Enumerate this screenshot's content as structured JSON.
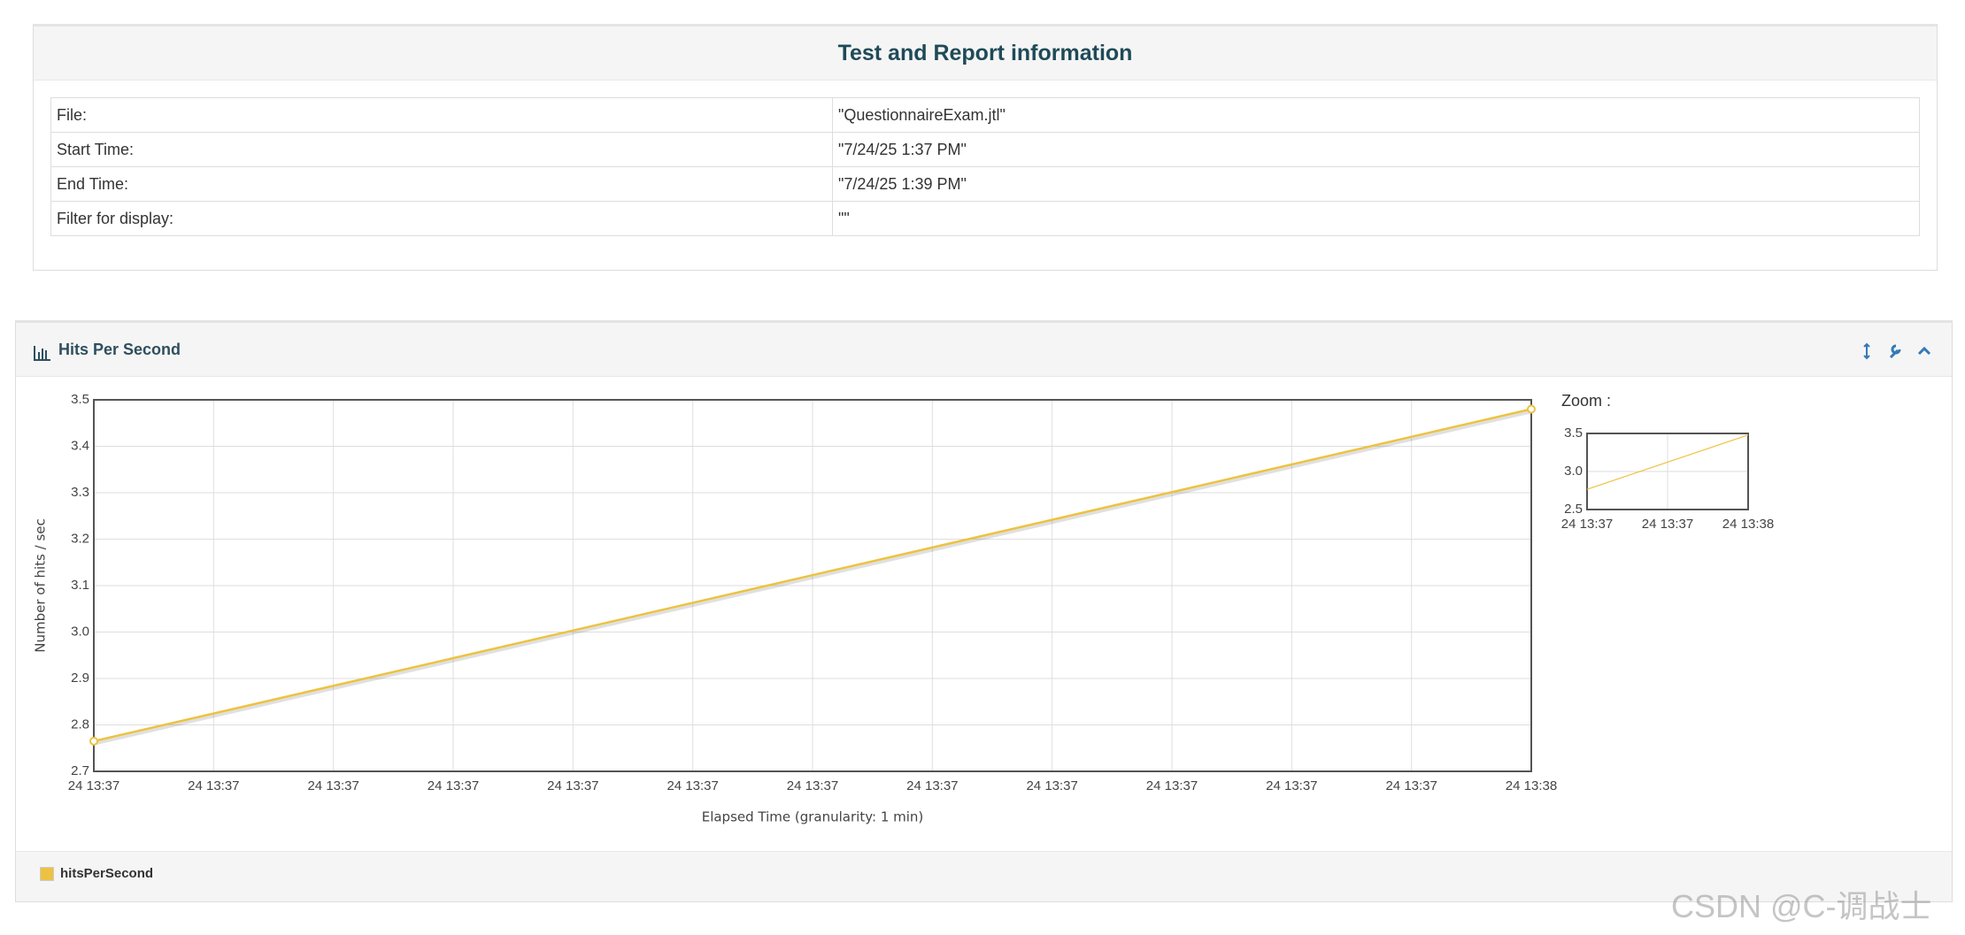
{
  "info": {
    "title": "Test and Report information",
    "rows": [
      [
        "File:",
        "\"QuestionnaireExam.jtl\""
      ],
      [
        "Start Time:",
        "\"7/24/25 1:37 PM\""
      ],
      [
        "End Time:",
        "\"7/24/25 1:39 PM\""
      ],
      [
        "Filter for display:",
        "\"\""
      ]
    ]
  },
  "chart_data": [
    {
      "type": "line",
      "title": "Hits Per Second",
      "x_label": "Elapsed Time (granularity: 1 min)",
      "y_label": "Number of hits / sec",
      "x": [
        0,
        12
      ],
      "series": [
        {
          "name": "hitsPerSecond",
          "color": "#edc240",
          "values": [
            2.765,
            3.48
          ]
        }
      ],
      "xlim": [
        0,
        12
      ],
      "xticks": [
        {
          "value": 0,
          "label": "24 13:37"
        },
        {
          "value": 1,
          "label": "24 13:37"
        },
        {
          "value": 2,
          "label": "24 13:37"
        },
        {
          "value": 3,
          "label": "24 13:37"
        },
        {
          "value": 4,
          "label": "24 13:37"
        },
        {
          "value": 5,
          "label": "24 13:37"
        },
        {
          "value": 6,
          "label": "24 13:37"
        },
        {
          "value": 7,
          "label": "24 13:37"
        },
        {
          "value": 8,
          "label": "24 13:37"
        },
        {
          "value": 9,
          "label": "24 13:37"
        },
        {
          "value": 10,
          "label": "24 13:37"
        },
        {
          "value": 11,
          "label": "24 13:37"
        },
        {
          "value": 12,
          "label": "24 13:38"
        }
      ],
      "ylim": [
        2.7,
        3.5
      ],
      "yticks": [
        2.7,
        2.8,
        2.9,
        {
          "value": 3,
          "label": "3.0"
        },
        3.1,
        3.2,
        3.3,
        3.4,
        3.5
      ],
      "grid": true,
      "points": true
    },
    {
      "type": "line",
      "title": "Zoom :",
      "x": [
        0,
        12
      ],
      "series": [
        {
          "color": "#edc240",
          "values": [
            2.765,
            3.48
          ]
        }
      ],
      "xlim": [
        0,
        12
      ],
      "xticks": [
        {
          "value": 0,
          "label": "24 13:37"
        },
        {
          "value": 6,
          "label": "24 13:37"
        },
        {
          "value": 12,
          "label": "24 13:38"
        }
      ],
      "ylim": [
        2.5,
        3.5
      ],
      "yticks": [
        2.5,
        {
          "value": 3,
          "label": "3.0"
        },
        3.5
      ],
      "grid": true,
      "points": false
    }
  ],
  "watermark": "CSDN @C-调战士"
}
